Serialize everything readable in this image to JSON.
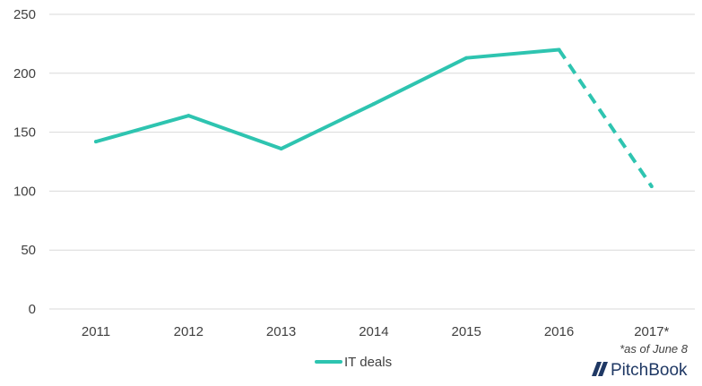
{
  "chart_data": {
    "type": "line",
    "categories": [
      "2011",
      "2012",
      "2013",
      "2014",
      "2015",
      "2016",
      "2017*"
    ],
    "series": [
      {
        "name": "IT deals",
        "values": [
          142,
          164,
          136,
          174,
          213,
          220,
          104
        ],
        "projected_from_index": 5
      }
    ],
    "ylim": [
      0,
      250
    ],
    "yticks": [
      0,
      50,
      100,
      150,
      200,
      250
    ],
    "grid": true,
    "legend": "bottom-center",
    "annotation": "*as of June 8",
    "colors": {
      "series": "#2ec4b0",
      "grid": "#d9d9d9",
      "text": "#404040",
      "brand": "#1f3864"
    }
  },
  "branding": {
    "logo_text": "PitchBook"
  }
}
